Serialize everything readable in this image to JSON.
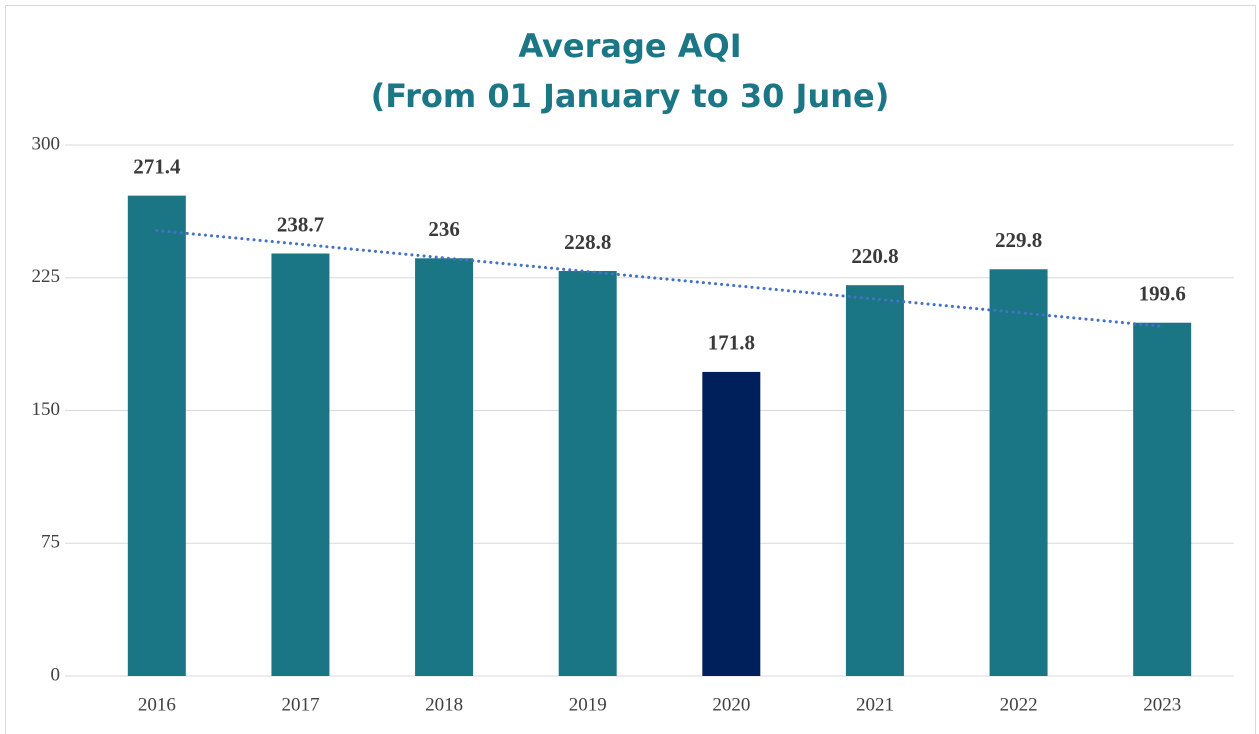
{
  "chart_data": {
    "type": "bar",
    "title": [
      "Average AQI",
      "(From 01 January to 30 June)"
    ],
    "categories": [
      "2016",
      "2017",
      "2018",
      "2019",
      "2020",
      "2021",
      "2022",
      "2023"
    ],
    "values": [
      271.4,
      238.7,
      236,
      228.8,
      171.8,
      220.8,
      229.8,
      199.6
    ],
    "colors": [
      "#1a7585",
      "#1a7585",
      "#1a7585",
      "#1a7585",
      "#00205b",
      "#1a7585",
      "#1a7585",
      "#1a7585"
    ],
    "ylim": [
      0,
      300
    ],
    "yticks": [
      0,
      75,
      150,
      225,
      300
    ],
    "grid": true,
    "trendline": {
      "type": "linear",
      "color": "#4472c4",
      "style": "dotted"
    }
  }
}
